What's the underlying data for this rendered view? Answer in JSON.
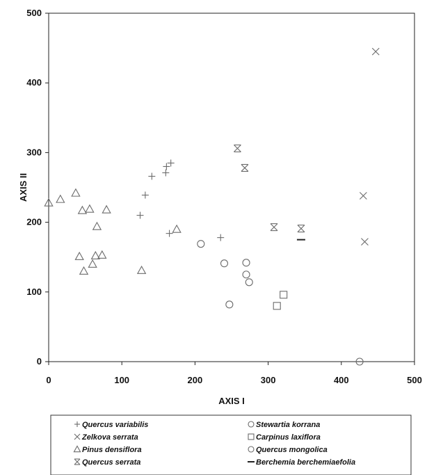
{
  "chart_data": {
    "type": "scatter",
    "title": "",
    "xlabel": "AXIS I",
    "ylabel": "AXIS II",
    "xlim": [
      0,
      500
    ],
    "ylim": [
      0,
      500
    ],
    "x_ticks": [
      "0",
      "100",
      "200",
      "300",
      "400",
      "500"
    ],
    "y_ticks": [
      "0",
      "100",
      "200",
      "300",
      "400",
      "500"
    ],
    "grid": false,
    "legend_position": "bottom",
    "series": [
      {
        "name": "Quercus variabilis",
        "marker": "plus",
        "points": [
          [
            125,
            210
          ],
          [
            132,
            239
          ],
          [
            141,
            266
          ],
          [
            160,
            271
          ],
          [
            161,
            280
          ],
          [
            167,
            285
          ],
          [
            165,
            184
          ],
          [
            235,
            178
          ]
        ]
      },
      {
        "name": "Zelkova serrata",
        "marker": "x",
        "points": [
          [
            447,
            445
          ],
          [
            430,
            238
          ],
          [
            432,
            172
          ]
        ]
      },
      {
        "name": "Pinus densiflora",
        "marker": "triangle",
        "points": [
          [
            0,
            228
          ],
          [
            16,
            233
          ],
          [
            37,
            242
          ],
          [
            46,
            217
          ],
          [
            56,
            219
          ],
          [
            79,
            218
          ],
          [
            66,
            194
          ],
          [
            42,
            151
          ],
          [
            48,
            130
          ],
          [
            60,
            140
          ],
          [
            64,
            152
          ],
          [
            73,
            153
          ],
          [
            127,
            131
          ],
          [
            175,
            190
          ]
        ]
      },
      {
        "name": "Quercus serrata",
        "marker": "asterisk",
        "points": [
          [
            258,
            306
          ],
          [
            268,
            278
          ],
          [
            308,
            193
          ],
          [
            345,
            191
          ]
        ]
      },
      {
        "name": "Stewartia korrana",
        "marker": "circle",
        "points": [
          [
            425,
            0
          ]
        ]
      },
      {
        "name": "Carpinus laxiflora",
        "marker": "square",
        "points": [
          [
            312,
            80
          ],
          [
            321,
            96
          ]
        ]
      },
      {
        "name": "Quercus mongolica",
        "marker": "circle",
        "points": [
          [
            208,
            169
          ],
          [
            240,
            141
          ],
          [
            247,
            82
          ],
          [
            270,
            142
          ],
          [
            270,
            125
          ],
          [
            274,
            114
          ]
        ]
      },
      {
        "name": "Berchemia berchemiaefolia",
        "marker": "dash",
        "points": [
          [
            345,
            175
          ]
        ]
      }
    ]
  }
}
